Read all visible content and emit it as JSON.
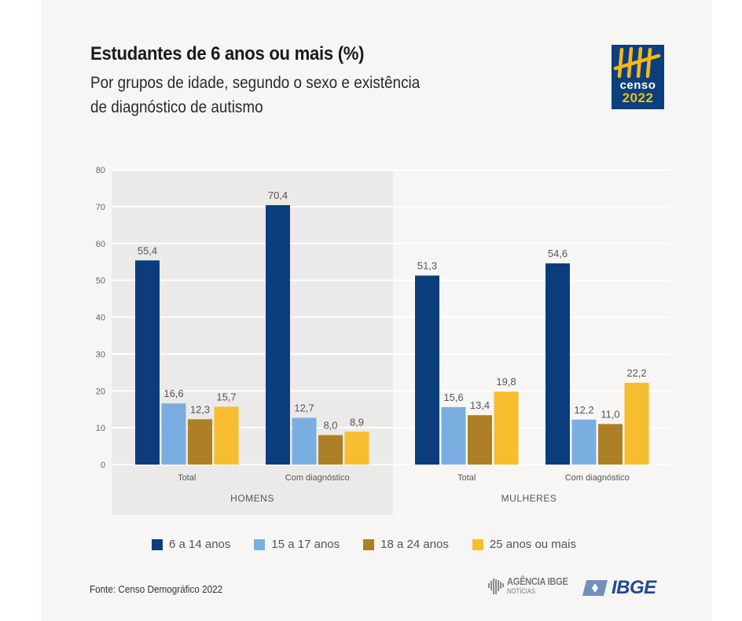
{
  "header": {
    "title": "Estudantes de 6 anos ou mais (%)",
    "subtitle_line1": "Por grupos de idade, segundo o sexo e existência",
    "subtitle_line2": "de diagnóstico de autismo"
  },
  "logo_censo": {
    "icon": "tally-marks-icon",
    "word": "censo",
    "year": "2022"
  },
  "footer": {
    "source": "Fonte: Censo Demográfico 2022",
    "agencia_main": "AGÊNCIA IBGE",
    "agencia_sub": "NOTÍCIAS",
    "ibge": "IBGE"
  },
  "colors": {
    "card_bg": "#f7f6f4",
    "panel_bg": "#ebeae8",
    "grid": "#ffffff",
    "axis_text": "#666666"
  },
  "chart_data": {
    "type": "bar",
    "title": "Estudantes de 6 anos ou mais (%)",
    "xlabel": "",
    "ylabel": "",
    "ylim": [
      0,
      80
    ],
    "yticks": [
      0,
      10,
      20,
      30,
      40,
      50,
      60,
      70,
      80
    ],
    "grid": true,
    "legend_position": "bottom",
    "groups": [
      {
        "name": "HOMENS",
        "shaded": true,
        "categories": [
          "Total",
          "Com diagnóstico"
        ]
      },
      {
        "name": "MULHERES",
        "shaded": false,
        "categories": [
          "Total",
          "Com diagnóstico"
        ]
      }
    ],
    "categories": [
      "HOMENS - Total",
      "HOMENS - Com diagnóstico",
      "MULHERES - Total",
      "MULHERES - Com diagnóstico"
    ],
    "series": [
      {
        "name": "6 a 14 anos",
        "color": "#0b3d7c",
        "values": [
          55.4,
          70.4,
          51.3,
          54.6
        ],
        "labels": [
          "55,4",
          "70,4",
          "51,3",
          "54,6"
        ]
      },
      {
        "name": "15 a 17 anos",
        "color": "#7aaee0",
        "values": [
          16.6,
          12.7,
          15.6,
          12.2
        ],
        "labels": [
          "16,6",
          "12,7",
          "15,6",
          "12,2"
        ]
      },
      {
        "name": "18 a 24 anos",
        "color": "#ad7f26",
        "values": [
          12.3,
          8.0,
          13.4,
          11.0
        ],
        "labels": [
          "12,3",
          "8,0",
          "13,4",
          "11,0"
        ]
      },
      {
        "name": "25 anos ou mais",
        "color": "#f6bd2e",
        "values": [
          15.7,
          8.9,
          19.8,
          22.2
        ],
        "labels": [
          "15,7",
          "8,9",
          "19,8",
          "22,2"
        ]
      }
    ]
  }
}
